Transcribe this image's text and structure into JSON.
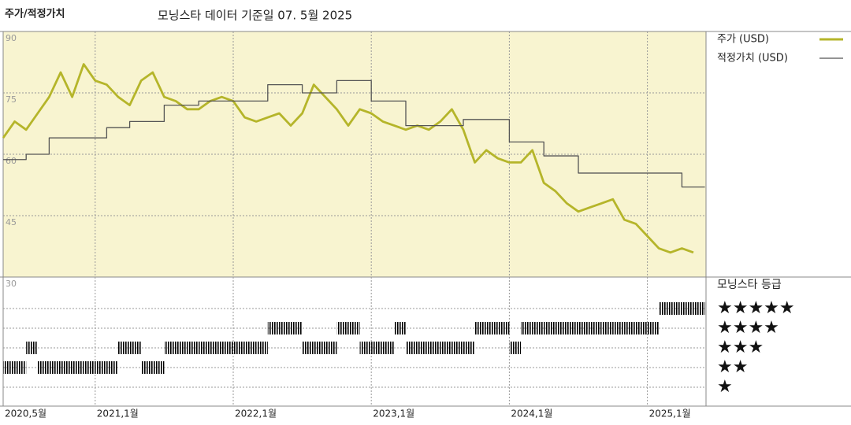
{
  "chart_data": {
    "type": "line",
    "title": "주가/적정가치",
    "subtitle": "모닝스타 데이터 기준일 07. 5월 2025",
    "x": [
      "2020-05",
      "2020-06",
      "2020-07",
      "2020-08",
      "2020-09",
      "2020-10",
      "2020-11",
      "2020-12",
      "2021-01",
      "2021-02",
      "2021-03",
      "2021-04",
      "2021-05",
      "2021-06",
      "2021-07",
      "2021-08",
      "2021-09",
      "2021-10",
      "2021-11",
      "2021-12",
      "2022-01",
      "2022-02",
      "2022-03",
      "2022-04",
      "2022-05",
      "2022-06",
      "2022-07",
      "2022-08",
      "2022-09",
      "2022-10",
      "2022-11",
      "2022-12",
      "2023-01",
      "2023-02",
      "2023-03",
      "2023-04",
      "2023-05",
      "2023-06",
      "2023-07",
      "2023-08",
      "2023-09",
      "2023-10",
      "2023-11",
      "2023-12",
      "2024-01",
      "2024-02",
      "2024-03",
      "2024-04",
      "2024-05",
      "2024-06",
      "2024-07",
      "2024-08",
      "2024-09",
      "2024-10",
      "2024-11",
      "2024-12",
      "2025-01",
      "2025-02",
      "2025-03",
      "2025-04",
      "2025-05"
    ],
    "series": [
      {
        "name": "주가 (USD)",
        "color": "#b5b52a",
        "values": [
          64,
          68,
          66,
          70,
          74,
          80,
          74,
          82,
          78,
          77,
          74,
          72,
          78,
          80,
          74,
          73,
          71,
          71,
          73,
          74,
          73,
          69,
          68,
          69,
          70,
          67,
          70,
          77,
          74,
          71,
          67,
          71,
          70,
          68,
          67,
          66,
          67,
          66,
          68,
          71,
          66,
          58,
          61,
          59,
          58,
          58,
          61,
          53,
          51,
          48,
          46,
          47,
          48,
          49,
          44,
          43,
          40,
          37,
          36,
          37,
          36
        ]
      },
      {
        "name": "적정가치 (USD)",
        "color": "#555555",
        "step": true,
        "values": [
          58.7,
          58.7,
          60,
          60,
          64,
          64,
          64,
          64,
          64,
          66.5,
          66.5,
          68,
          68,
          68,
          72,
          72,
          72,
          73,
          73,
          73,
          73,
          73,
          73,
          77,
          77,
          77,
          75,
          75,
          75,
          78,
          78,
          78,
          73,
          73,
          73,
          67,
          67,
          67,
          67,
          67,
          68.5,
          68.5,
          68.5,
          68.5,
          63,
          63,
          63,
          59.6,
          59.6,
          59.6,
          55.4,
          55.4,
          55.4,
          55.4,
          55.4,
          55.4,
          55.4,
          55.4,
          55.4,
          52,
          52
        ]
      }
    ],
    "ratings": {
      "name": "모닝스타 등급",
      "color": "#333333",
      "top_color": "#2e7d5b",
      "levels": [
        5,
        4,
        3,
        2,
        1
      ],
      "labels": [
        "★★★★★",
        "★★★★",
        "★★★",
        "★★",
        "★"
      ],
      "values": [
        2,
        2,
        3,
        2,
        2,
        2,
        2,
        2,
        2,
        2,
        3,
        3,
        2,
        2,
        3,
        3,
        3,
        3,
        3,
        3,
        3,
        3,
        3,
        4,
        4,
        4,
        3,
        3,
        3,
        4,
        4,
        3,
        3,
        3,
        4,
        3,
        3,
        3,
        3,
        3,
        3,
        4,
        4,
        4,
        3,
        4,
        4,
        4,
        4,
        4,
        4,
        4,
        4,
        4,
        4,
        4,
        4,
        5,
        5,
        5,
        5
      ]
    },
    "ylim": [
      30,
      90
    ],
    "yticks": [
      30,
      45,
      60,
      75,
      90
    ],
    "xticks": [
      {
        "value": "2020-05",
        "label": "2020,5월"
      },
      {
        "value": "2021-01",
        "label": "2021,1월"
      },
      {
        "value": "2022-01",
        "label": "2022,1월"
      },
      {
        "value": "2023-01",
        "label": "2023,1월"
      },
      {
        "value": "2024-01",
        "label": "2024,1월"
      },
      {
        "value": "2025-01",
        "label": "2025,1월"
      }
    ],
    "grid": true
  }
}
